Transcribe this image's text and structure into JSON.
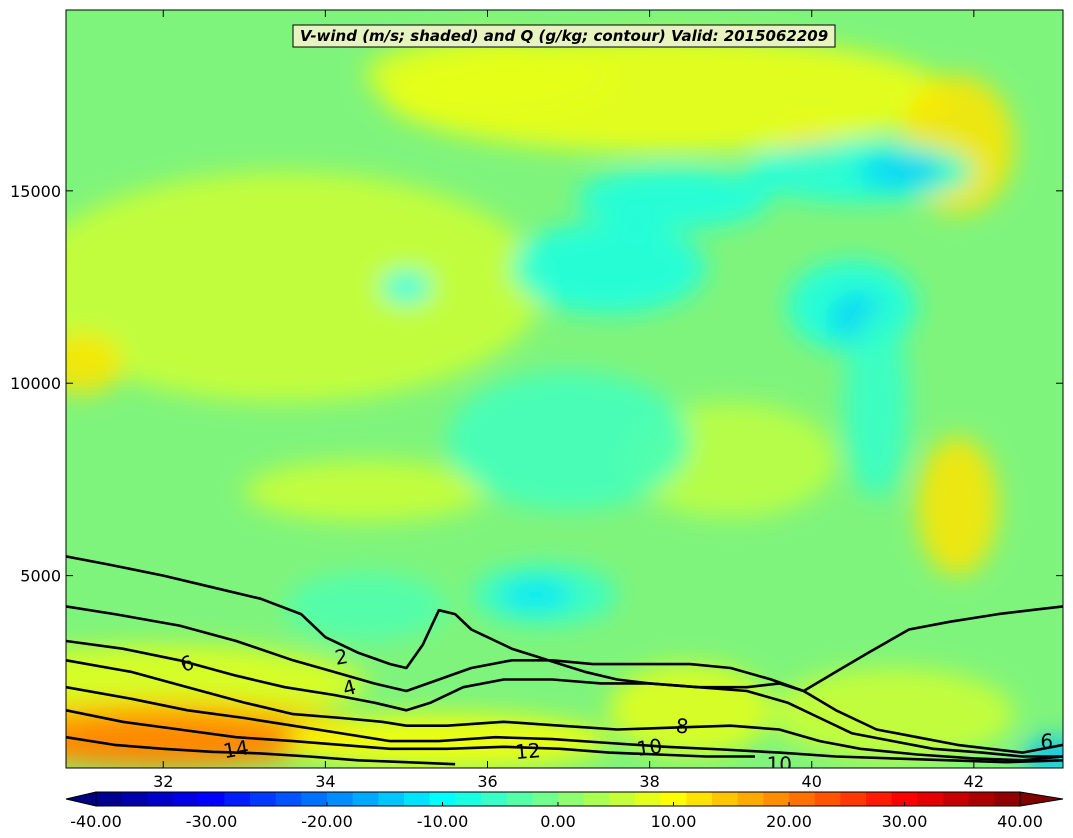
{
  "chart_data": {
    "type": "heatmap",
    "title": "V-wind (m/s; shaded) and Q (g/kg; contour) Valid: 2015062209",
    "x_ticks": [
      32,
      34,
      36,
      38,
      40,
      42
    ],
    "y_ticks": [
      5000,
      10000,
      15000
    ],
    "xlim": [
      30.8,
      43.1
    ],
    "ylim": [
      0,
      19700
    ],
    "colorbar": {
      "min": -40,
      "max": 40,
      "tick_values": [
        -40,
        -30,
        -20,
        -10,
        0,
        10,
        20,
        30,
        40
      ],
      "tick_labels": [
        "-40.00",
        "-30.00",
        "-20.00",
        "-10.00",
        "0.00",
        "10.00",
        "20.00",
        "30.00",
        "40.00"
      ],
      "levels": 36,
      "colormap": "jet",
      "extend": "both"
    },
    "shading_regions": [
      {
        "x": 33.5,
        "y": 12500,
        "rx": 3.2,
        "ry": 3000,
        "v": 6
      },
      {
        "x": 31.0,
        "y": 10500,
        "rx": 0.5,
        "ry": 800,
        "v": 12
      },
      {
        "x": 34.5,
        "y": 7200,
        "rx": 1.5,
        "ry": 800,
        "v": 6
      },
      {
        "x": 41.8,
        "y": 6800,
        "rx": 0.5,
        "ry": 1800,
        "v": 12
      },
      {
        "x": 39.0,
        "y": 8000,
        "rx": 1.3,
        "ry": 1500,
        "v": 5
      },
      {
        "x": 38.2,
        "y": 17500,
        "rx": 3.5,
        "ry": 1500,
        "v": 9
      },
      {
        "x": 36.0,
        "y": 18000,
        "rx": 1.5,
        "ry": 1000,
        "v": 8
      },
      {
        "x": 40.0,
        "y": 16000,
        "rx": 0.4,
        "ry": 600,
        "v": 12
      },
      {
        "x": 41.8,
        "y": 16200,
        "rx": 0.7,
        "ry": 1800,
        "v": 12
      },
      {
        "x": 37.5,
        "y": 13000,
        "rx": 1.2,
        "ry": 1200,
        "v": -8
      },
      {
        "x": 38.3,
        "y": 14800,
        "rx": 1.2,
        "ry": 800,
        "v": -8
      },
      {
        "x": 40.6,
        "y": 15500,
        "rx": 1.4,
        "ry": 800,
        "v": -8
      },
      {
        "x": 41.1,
        "y": 15500,
        "rx": 0.5,
        "ry": 400,
        "v": -14
      },
      {
        "x": 40.5,
        "y": 12000,
        "rx": 0.8,
        "ry": 1200,
        "v": -8
      },
      {
        "x": 40.6,
        "y": 11700,
        "rx": 0.35,
        "ry": 600,
        "v": -14
      },
      {
        "x": 40.8,
        "y": 9500,
        "rx": 0.4,
        "ry": 2500,
        "v": -6
      },
      {
        "x": 37.0,
        "y": 8500,
        "rx": 1.5,
        "ry": 1800,
        "v": -5
      },
      {
        "x": 36.7,
        "y": 4500,
        "rx": 0.9,
        "ry": 800,
        "v": -6
      },
      {
        "x": 36.6,
        "y": 4500,
        "rx": 0.45,
        "ry": 400,
        "v": -12
      },
      {
        "x": 34.5,
        "y": 4200,
        "rx": 1.0,
        "ry": 900,
        "v": -4
      },
      {
        "x": 35.0,
        "y": 12500,
        "rx": 0.3,
        "ry": 400,
        "v": -10
      },
      {
        "x": 32.0,
        "y": 2200,
        "rx": 2.5,
        "ry": 1000,
        "v": 8
      },
      {
        "x": 32.0,
        "y": 900,
        "rx": 2.5,
        "ry": 900,
        "v": 15
      },
      {
        "x": 32.0,
        "y": 700,
        "rx": 1.8,
        "ry": 700,
        "v": 20
      },
      {
        "x": 35.5,
        "y": 700,
        "rx": 2.0,
        "ry": 700,
        "v": 10
      },
      {
        "x": 38.5,
        "y": 1500,
        "rx": 1.0,
        "ry": 1200,
        "v": 8
      },
      {
        "x": 41.0,
        "y": 1400,
        "rx": 1.5,
        "ry": 1200,
        "v": 6
      },
      {
        "x": 43.0,
        "y": 300,
        "rx": 0.4,
        "ry": 500,
        "v": -15
      }
    ],
    "contours": [
      {
        "level": 2,
        "points": [
          [
            30.8,
            5500
          ],
          [
            31.3,
            5300
          ],
          [
            32.0,
            5000
          ],
          [
            32.6,
            4700
          ],
          [
            33.2,
            4400
          ],
          [
            33.7,
            4000
          ],
          [
            34.0,
            3400
          ],
          [
            34.4,
            3000
          ],
          [
            34.8,
            2700
          ],
          [
            35.0,
            2600
          ],
          [
            35.2,
            3200
          ],
          [
            35.4,
            4100
          ],
          [
            35.6,
            4000
          ],
          [
            35.8,
            3600
          ],
          [
            36.1,
            3300
          ],
          [
            36.3,
            3100
          ],
          [
            36.6,
            2900
          ],
          [
            36.9,
            2700
          ],
          [
            37.2,
            2500
          ],
          [
            37.6,
            2300
          ],
          [
            38.0,
            2200
          ],
          [
            38.6,
            2100
          ],
          [
            39.2,
            2100
          ],
          [
            39.6,
            2200
          ],
          [
            39.9,
            2000
          ],
          [
            40.3,
            2500
          ],
          [
            40.7,
            3000
          ],
          [
            41.2,
            3600
          ],
          [
            41.7,
            3800
          ],
          [
            42.3,
            4000
          ],
          [
            42.7,
            4100
          ],
          [
            43.1,
            4200
          ]
        ]
      },
      {
        "level": 4,
        "points": [
          [
            30.8,
            4200
          ],
          [
            31.4,
            4000
          ],
          [
            32.2,
            3700
          ],
          [
            32.9,
            3300
          ],
          [
            33.6,
            2800
          ],
          [
            34.1,
            2500
          ],
          [
            34.6,
            2200
          ],
          [
            35.0,
            2000
          ],
          [
            35.4,
            2300
          ],
          [
            35.8,
            2600
          ],
          [
            36.3,
            2800
          ],
          [
            36.8,
            2800
          ],
          [
            37.3,
            2700
          ],
          [
            37.9,
            2700
          ],
          [
            38.5,
            2700
          ],
          [
            39.0,
            2600
          ],
          [
            39.5,
            2300
          ],
          [
            39.9,
            2000
          ],
          [
            40.3,
            1500
          ],
          [
            40.8,
            1000
          ],
          [
            41.3,
            800
          ],
          [
            41.8,
            600
          ],
          [
            42.2,
            500
          ],
          [
            42.6,
            400
          ],
          [
            43.1,
            600
          ]
        ]
      },
      {
        "level": 6,
        "points": [
          [
            30.8,
            3300
          ],
          [
            31.5,
            3100
          ],
          [
            32.2,
            2800
          ],
          [
            32.9,
            2400
          ],
          [
            33.5,
            2100
          ],
          [
            34.1,
            1900
          ],
          [
            34.6,
            1700
          ],
          [
            35.0,
            1500
          ],
          [
            35.3,
            1700
          ],
          [
            35.7,
            2100
          ],
          [
            36.2,
            2300
          ],
          [
            36.8,
            2300
          ],
          [
            37.4,
            2200
          ],
          [
            38.0,
            2200
          ],
          [
            38.6,
            2100
          ],
          [
            39.2,
            2000
          ],
          [
            39.7,
            1700
          ],
          [
            40.1,
            1300
          ],
          [
            40.5,
            900
          ],
          [
            41.0,
            700
          ],
          [
            41.5,
            500
          ],
          [
            42.1,
            400
          ],
          [
            42.6,
            300
          ],
          [
            43.1,
            300
          ]
        ]
      },
      {
        "level": 8,
        "points": [
          [
            30.8,
            2800
          ],
          [
            31.6,
            2500
          ],
          [
            32.3,
            2100
          ],
          [
            33.0,
            1700
          ],
          [
            33.6,
            1400
          ],
          [
            34.2,
            1300
          ],
          [
            34.7,
            1200
          ],
          [
            35.0,
            1100
          ],
          [
            35.5,
            1100
          ],
          [
            36.2,
            1200
          ],
          [
            36.9,
            1100
          ],
          [
            37.6,
            1000
          ],
          [
            38.3,
            1050
          ],
          [
            39.0,
            1100
          ],
          [
            39.6,
            1000
          ],
          [
            40.1,
            700
          ],
          [
            40.6,
            500
          ],
          [
            41.3,
            350
          ],
          [
            42.0,
            250
          ],
          [
            42.6,
            200
          ],
          [
            43.1,
            300
          ]
        ]
      },
      {
        "level": 10,
        "points": [
          [
            30.8,
            2100
          ],
          [
            31.6,
            1800
          ],
          [
            32.3,
            1500
          ],
          [
            33.0,
            1300
          ],
          [
            33.6,
            1100
          ],
          [
            34.2,
            900
          ],
          [
            34.8,
            700
          ],
          [
            35.4,
            700
          ],
          [
            36.1,
            800
          ],
          [
            36.8,
            750
          ],
          [
            37.5,
            650
          ],
          [
            38.2,
            550
          ],
          [
            38.9,
            480
          ],
          [
            39.6,
            400
          ],
          [
            40.3,
            300
          ],
          [
            41.0,
            250
          ],
          [
            41.7,
            200
          ],
          [
            42.4,
            150
          ],
          [
            43.1,
            200
          ]
        ]
      },
      {
        "level": 12,
        "points": [
          [
            30.8,
            1500
          ],
          [
            31.5,
            1200
          ],
          [
            32.2,
            1000
          ],
          [
            32.9,
            800
          ],
          [
            33.6,
            700
          ],
          [
            34.2,
            600
          ],
          [
            34.8,
            500
          ],
          [
            35.5,
            500
          ],
          [
            36.2,
            550
          ],
          [
            36.9,
            500
          ],
          [
            37.5,
            400
          ],
          [
            38.1,
            350
          ],
          [
            38.7,
            300
          ],
          [
            39.3,
            300
          ]
        ]
      },
      {
        "level": 14,
        "points": [
          [
            30.8,
            800
          ],
          [
            31.4,
            600
          ],
          [
            32.0,
            500
          ],
          [
            32.6,
            420
          ],
          [
            33.2,
            380
          ],
          [
            33.8,
            300
          ],
          [
            34.4,
            200
          ],
          [
            35.0,
            150
          ],
          [
            35.6,
            100
          ]
        ]
      }
    ],
    "contour_labels": [
      {
        "text": "2",
        "x": 34.2,
        "y": 2850,
        "angle": -10
      },
      {
        "text": "4",
        "x": 34.3,
        "y": 2050,
        "angle": -15
      },
      {
        "text": "6",
        "x": 32.3,
        "y": 2680,
        "angle": -20
      },
      {
        "text": "8",
        "x": 38.4,
        "y": 1050,
        "angle": 5
      },
      {
        "text": "10",
        "x": 38.0,
        "y": 500,
        "angle": -8
      },
      {
        "text": "10",
        "x": 39.6,
        "y": 50,
        "angle": 0
      },
      {
        "text": "12",
        "x": 36.5,
        "y": 400,
        "angle": -5
      },
      {
        "text": "14",
        "x": 32.9,
        "y": 450,
        "angle": -10
      },
      {
        "text": "6",
        "x": 42.9,
        "y": 650,
        "angle": 0
      }
    ]
  }
}
